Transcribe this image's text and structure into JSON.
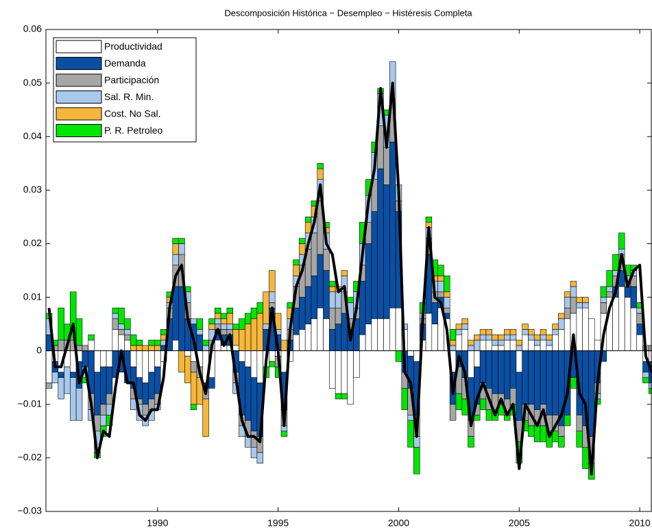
{
  "chart_data": {
    "type": "stacked-bar",
    "title": "Descomposición Histórica − Desempleo − Histéresis Completa",
    "xlim": [
      1985.37,
      2010.48
    ],
    "xticks": [
      1990,
      1995,
      2000,
      2005,
      2010
    ],
    "ylim": [
      -0.03,
      0.06
    ],
    "yticks": [
      {
        "value": -0.03,
        "label": "−0.03"
      },
      {
        "value": -0.02,
        "label": "−0.02"
      },
      {
        "value": -0.01,
        "label": "−0.01"
      },
      0,
      0.01,
      0.02,
      0.03,
      0.04,
      0.05,
      0.06
    ],
    "legend": "upper left",
    "x": [
      1985.5,
      1985.75,
      1986,
      1986.25,
      1986.5,
      1986.75,
      1987,
      1987.25,
      1987.5,
      1987.75,
      1988,
      1988.25,
      1988.5,
      1988.75,
      1989,
      1989.25,
      1989.5,
      1989.75,
      1990,
      1990.25,
      1990.5,
      1990.75,
      1991,
      1991.25,
      1991.5,
      1991.75,
      1992,
      1992.25,
      1992.5,
      1992.75,
      1993,
      1993.25,
      1993.5,
      1993.75,
      1994,
      1994.25,
      1994.5,
      1994.75,
      1995,
      1995.25,
      1995.5,
      1995.75,
      1996,
      1996.25,
      1996.5,
      1996.75,
      1997,
      1997.25,
      1997.5,
      1997.75,
      1998,
      1998.25,
      1998.5,
      1998.75,
      1999,
      1999.25,
      1999.5,
      1999.75,
      2000,
      2000.25,
      2000.5,
      2000.75,
      2001,
      2001.25,
      2001.5,
      2001.75,
      2002,
      2002.25,
      2002.5,
      2002.75,
      2003,
      2003.25,
      2003.5,
      2003.75,
      2004,
      2004.25,
      2004.5,
      2004.75,
      2005,
      2005.25,
      2005.5,
      2005.75,
      2006,
      2006.25,
      2006.5,
      2006.75,
      2007,
      2007.25,
      2007.5,
      2007.75,
      2008,
      2008.25,
      2008.5,
      2008.75,
      2009,
      2009.25,
      2009.5,
      2009.75,
      2010,
      2010.25,
      2010.5
    ],
    "series": [
      {
        "name": "Productividad",
        "color": "#ffffff",
        "values": [
          -0.006,
          -0.002,
          -0.004,
          -0.003,
          -0.004,
          -0.002,
          0,
          0.002,
          -0.004,
          -0.003,
          -0.003,
          0.004,
          0.003,
          0.002,
          -0.003,
          -0.005,
          -0.006,
          -0.004,
          -0.003,
          -0.002,
          0,
          0.002,
          0,
          -0.001,
          -0.002,
          -0.003,
          -0.006,
          -0.005,
          0.002,
          0.001,
          0.001,
          0.001,
          -0.002,
          -0.003,
          -0.005,
          -0.006,
          -0.003,
          -0.002,
          -0.001,
          -0.004,
          -0.002,
          0.003,
          0.004,
          0.005,
          0.006,
          0.008,
          0.006,
          -0.007,
          -0.008,
          -0.008,
          -0.01,
          -0.005,
          0.003,
          0.005,
          0.006,
          0.006,
          0.006,
          0.008,
          0.008,
          0.004,
          -0.001,
          -0.002,
          0.002,
          0.007,
          0.005,
          0.008,
          0.006,
          -0.004,
          0.003,
          0.004,
          -0.005,
          -0.003,
          0.002,
          0.002,
          0.001,
          0.001,
          0.002,
          0.002,
          -0.004,
          0.003,
          0.002,
          0.001,
          0.002,
          0.001,
          0.003,
          0.004,
          0.006,
          0.007,
          0.008,
          0.008,
          0.006,
          0.002,
          0.007,
          0.01,
          0.01,
          0.012,
          0.01,
          0.008,
          0.003,
          -0.002,
          -0.002
        ]
      },
      {
        "name": "Demanda",
        "color": "#0a4fa3",
        "values": [
          0.003,
          -0.002,
          -0.001,
          0,
          -0.001,
          -0.005,
          -0.003,
          -0.008,
          -0.008,
          -0.007,
          -0.005,
          -0.005,
          -0.004,
          -0.006,
          -0.004,
          -0.004,
          -0.004,
          -0.005,
          -0.005,
          0.001,
          0.006,
          0.01,
          0.012,
          0.006,
          0.005,
          0.003,
          -0.001,
          -0.002,
          0.002,
          0.002,
          0.002,
          -0.004,
          -0.01,
          -0.01,
          -0.01,
          -0.01,
          0.004,
          0.008,
          0.003,
          -0.007,
          0.002,
          0.005,
          0.006,
          0.007,
          0.008,
          0.01,
          0.009,
          0.004,
          0.005,
          0.007,
          0.004,
          0.006,
          0.01,
          0.015,
          0.02,
          0.028,
          0.025,
          0.031,
          0.018,
          -0.004,
          -0.006,
          -0.01,
          0.003,
          0.011,
          0.004,
          0.002,
          0.001,
          -0.006,
          -0.003,
          -0.005,
          -0.008,
          -0.007,
          -0.006,
          -0.007,
          -0.008,
          -0.008,
          -0.009,
          -0.007,
          -0.009,
          -0.01,
          -0.01,
          -0.011,
          -0.01,
          -0.012,
          -0.012,
          -0.014,
          -0.012,
          -0.005,
          -0.012,
          -0.014,
          -0.016,
          -0.006,
          -0.002,
          0,
          0.002,
          0.003,
          0.002,
          0.004,
          0.002,
          -0.002,
          -0.004
        ]
      },
      {
        "name": "Participación",
        "color": "#a6a6a6",
        "values": [
          -0.001,
          0.001,
          0.002,
          0.002,
          0.002,
          0.001,
          0.001,
          -0.003,
          -0.003,
          -0.002,
          -0.002,
          0.002,
          0.001,
          0.001,
          -0.002,
          -0.001,
          -0.002,
          -0.002,
          -0.002,
          0,
          0.002,
          0.004,
          0.006,
          0.003,
          -0.002,
          -0.002,
          -0.002,
          0.002,
          0.001,
          0.001,
          0.001,
          -0.002,
          -0.002,
          -0.003,
          -0.003,
          -0.003,
          0,
          0.001,
          -0.002,
          -0.003,
          0.002,
          0.004,
          0.006,
          0.007,
          0.008,
          0.01,
          0.004,
          0.004,
          0.003,
          0.004,
          0.002,
          0.002,
          0.003,
          0.004,
          0.006,
          0.008,
          0.007,
          0.008,
          0.002,
          -0.003,
          -0.005,
          -0.004,
          0.001,
          0.003,
          0.002,
          0.001,
          0.001,
          -0.003,
          -0.005,
          -0.004,
          -0.003,
          -0.002,
          -0.003,
          -0.004,
          -0.003,
          -0.002,
          -0.003,
          -0.003,
          -0.004,
          -0.003,
          -0.004,
          -0.003,
          -0.004,
          -0.003,
          -0.003,
          -0.002,
          0.002,
          0.003,
          -0.003,
          -0.004,
          -0.004,
          -0.002,
          0.002,
          0.001,
          0.002,
          0.003,
          0.001,
          0.002,
          0.002,
          0.001,
          0.001
        ]
      },
      {
        "name": "Sal. R. Min.",
        "color": "#a8c8ec",
        "values": [
          0.003,
          -0.002,
          -0.004,
          -0.005,
          -0.008,
          -0.006,
          -0.002,
          -0.002,
          -0.004,
          -0.002,
          -0.002,
          0.001,
          0.001,
          0.001,
          -0.002,
          -0.003,
          -0.002,
          -0.002,
          -0.001,
          0.001,
          0.001,
          0.002,
          0.002,
          0.002,
          0.001,
          0.001,
          0.001,
          0.002,
          0.001,
          0.001,
          0.001,
          -0.002,
          -0.002,
          -0.002,
          -0.002,
          -0.002,
          0.001,
          0.002,
          0.001,
          -0.001,
          0.002,
          0.002,
          0.002,
          0.003,
          0.003,
          0.004,
          0.003,
          0.003,
          0.003,
          0.003,
          0.003,
          0.003,
          0.004,
          0.005,
          0.005,
          0.006,
          0.006,
          0.007,
          0.003,
          0.001,
          -0.001,
          -0.002,
          0.001,
          0.002,
          0.002,
          0.002,
          0.002,
          0.001,
          0.001,
          0.001,
          0.001,
          0.002,
          0.001,
          0.001,
          0.001,
          0.001,
          0.001,
          0.001,
          0.001,
          0.001,
          0.001,
          0.001,
          0.001,
          0.001,
          0.001,
          0.002,
          0.002,
          0.002,
          0.001,
          0.001,
          -0.001,
          -0.001,
          0.001,
          0.001,
          0.001,
          0.001,
          0.001,
          0.001,
          0.001,
          -0.001,
          -0.001
        ]
      },
      {
        "name": "Cost. No Sal.",
        "color": "#f5b73b",
        "values": [
          0,
          0,
          0,
          0,
          0,
          0,
          0,
          0,
          0,
          0,
          0,
          0,
          0,
          0,
          0.001,
          0.001,
          0.001,
          0.001,
          0.001,
          0.001,
          0.001,
          0.002,
          -0.004,
          -0.005,
          -0.006,
          -0.005,
          -0.007,
          0.001,
          0.001,
          0.001,
          0.002,
          0.003,
          0.004,
          0.005,
          0.006,
          0.007,
          0.006,
          0.004,
          0.003,
          0.002,
          0.002,
          0.002,
          0.002,
          0.002,
          0.002,
          0.002,
          0.001,
          0.001,
          0.001,
          0.001,
          0,
          0,
          0,
          0,
          0,
          0,
          0,
          0,
          0,
          0,
          0,
          0,
          0,
          0.001,
          0.001,
          0.001,
          0.001,
          0.001,
          0.001,
          0.001,
          0.001,
          0.001,
          0.001,
          0.001,
          0.001,
          0.001,
          0.001,
          0.001,
          0.001,
          0.001,
          0.001,
          0.001,
          0.001,
          0.001,
          0.001,
          0.001,
          0.001,
          0.001,
          0.001,
          0.001,
          0,
          0,
          0,
          0,
          0,
          0,
          0,
          0,
          0,
          0,
          0
        ]
      },
      {
        "name": "P. R. Petroleo",
        "color": "#00e600",
        "values": [
          0.001,
          0.001,
          0.006,
          0.003,
          0.009,
          0.005,
          -0.001,
          0.001,
          -0.001,
          -0.002,
          -0.002,
          0.001,
          0.003,
          0.002,
          0.002,
          0.001,
          0,
          0.001,
          0.001,
          0.001,
          0.001,
          0.001,
          0.001,
          0.001,
          -0.001,
          0.002,
          0.001,
          0.001,
          0.001,
          0.001,
          0.001,
          0.001,
          0.002,
          0.002,
          0.002,
          0.002,
          -0.002,
          -0.001,
          -0.002,
          -0.001,
          0.001,
          0.001,
          0.001,
          0.001,
          0.001,
          0.001,
          0.001,
          0.001,
          -0.001,
          -0.001,
          0.001,
          0.002,
          0.004,
          0.003,
          0.002,
          0.001,
          0.001,
          0,
          -0.002,
          -0.004,
          -0.005,
          -0.005,
          0.002,
          0.001,
          0.003,
          0.002,
          0.003,
          0.002,
          -0.003,
          -0.003,
          -0.002,
          -0.001,
          -0.002,
          -0.002,
          -0.002,
          -0.002,
          -0.001,
          -0.002,
          -0.004,
          -0.002,
          -0.002,
          -0.003,
          -0.003,
          -0.003,
          -0.002,
          -0.002,
          -0.002,
          -0.002,
          -0.003,
          -0.004,
          -0.003,
          -0.001,
          0.002,
          0.003,
          0.003,
          0.003,
          0.002,
          0.001,
          0.001,
          -0.001,
          -0.001
        ]
      }
    ],
    "line": {
      "color": "#000000",
      "values": [
        0.008,
        -0.003,
        -0.003,
        0.001,
        0.005,
        -0.006,
        -0.003,
        -0.01,
        -0.02,
        -0.015,
        -0.016,
        -0.007,
        0,
        -0.006,
        -0.006,
        -0.012,
        -0.013,
        -0.011,
        -0.011,
        -0.005,
        0.008,
        0.014,
        0.016,
        0.006,
        0.002,
        -0.004,
        -0.008,
        0.001,
        0.004,
        0.001,
        0.003,
        -0.005,
        -0.013,
        -0.016,
        -0.016,
        -0.017,
        -0.002,
        0.008,
        0,
        -0.014,
        0.004,
        0.012,
        0.015,
        0.02,
        0.024,
        0.031,
        0.02,
        0.018,
        0.011,
        0.012,
        0.002,
        0.008,
        0.018,
        0.028,
        0.034,
        0.049,
        0.038,
        0.05,
        0.03,
        -0.004,
        -0.006,
        -0.016,
        0.006,
        0.023,
        0.01,
        0.009,
        0.004,
        -0.008,
        -0.001,
        -0.004,
        -0.014,
        -0.009,
        -0.006,
        -0.009,
        -0.012,
        -0.009,
        -0.012,
        -0.01,
        -0.022,
        -0.01,
        -0.012,
        -0.014,
        -0.011,
        -0.016,
        -0.014,
        -0.012,
        -0.008,
        0.003,
        -0.008,
        -0.01,
        -0.023,
        -0.006,
        0.003,
        0.008,
        0.011,
        0.018,
        0.012,
        0.015,
        0.016,
        -0.001,
        -0.004
      ]
    }
  }
}
